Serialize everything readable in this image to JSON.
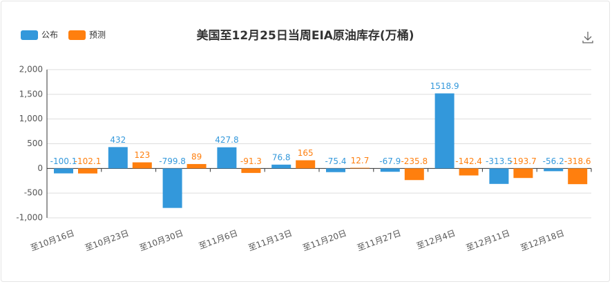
{
  "chart_data": {
    "type": "bar",
    "title": "美国至12月25日当周EIA原油库存(万桶)",
    "categories": [
      "至10月16日",
      "至10月23日",
      "至10月30日",
      "至11月6日",
      "至11月13日",
      "至11月20日",
      "至11月27日",
      "至12月4日",
      "至12月11日",
      "至12月18日"
    ],
    "series": [
      {
        "name": "公布",
        "color": "#3398db",
        "values": [
          -100.1,
          432,
          -799.8,
          427.8,
          76.8,
          -75.4,
          -67.9,
          1518.9,
          -313.5,
          -56.2
        ]
      },
      {
        "name": "预测",
        "color": "#ff7f0e",
        "values": [
          -102.1,
          123,
          89,
          -91.3,
          165,
          12.7,
          -235.8,
          -142.4,
          -193.7,
          -318.6
        ]
      }
    ],
    "ylim": [
      -1000,
      2000
    ],
    "yticks": [
      {
        "value": -1000,
        "label": "-1,000"
      },
      -500,
      0,
      500,
      {
        "value": 1000,
        "label": "1,000"
      },
      {
        "value": 1500,
        "label": "1,500"
      },
      {
        "value": 2000,
        "label": "2,000"
      }
    ],
    "grid": true,
    "legend": "top-left"
  }
}
